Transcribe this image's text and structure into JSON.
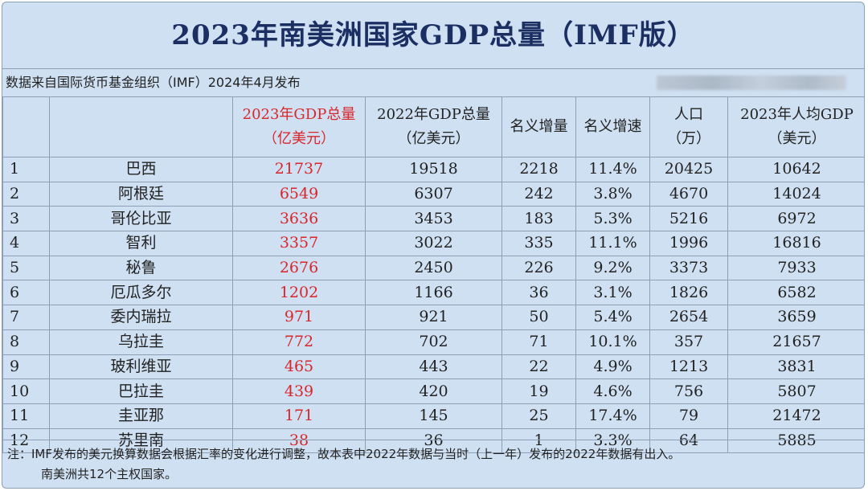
{
  "title": "2023年南美洲国家GDP总量（IMF版）",
  "source": "数据来自国际货币基金组织（IMF）2024年4月发布",
  "headers": [
    {
      "line1": "",
      "line2": ""
    },
    {
      "line1": "",
      "line2": ""
    },
    {
      "line1": "2023年GDP总量",
      "line2": "（亿美元）"
    },
    {
      "line1": "2022年GDP总量",
      "line2": "（亿美元）"
    },
    {
      "line1": "名义增量",
      "line2": ""
    },
    {
      "line1": "名义增速",
      "line2": ""
    },
    {
      "line1": "人口",
      "line2": "（万）"
    },
    {
      "line1": "2023年人均GDP",
      "line2": "（美元）"
    }
  ],
  "rows": [
    {
      "rank": "1",
      "country": "巴西",
      "gdp2023": "21737",
      "gdp2022": "19518",
      "increase": "2218",
      "growth": "11.4%",
      "population": "20425",
      "per_capita": "10642"
    },
    {
      "rank": "2",
      "country": "阿根廷",
      "gdp2023": "6549",
      "gdp2022": "6307",
      "increase": "242",
      "growth": "3.8%",
      "population": "4670",
      "per_capita": "14024"
    },
    {
      "rank": "3",
      "country": "哥伦比亚",
      "gdp2023": "3636",
      "gdp2022": "3453",
      "increase": "183",
      "growth": "5.3%",
      "population": "5216",
      "per_capita": "6972"
    },
    {
      "rank": "4",
      "country": "智利",
      "gdp2023": "3357",
      "gdp2022": "3022",
      "increase": "335",
      "growth": "11.1%",
      "population": "1996",
      "per_capita": "16816"
    },
    {
      "rank": "5",
      "country": "秘鲁",
      "gdp2023": "2676",
      "gdp2022": "2450",
      "increase": "226",
      "growth": "9.2%",
      "population": "3373",
      "per_capita": "7933"
    },
    {
      "rank": "6",
      "country": "厄瓜多尔",
      "gdp2023": "1202",
      "gdp2022": "1166",
      "increase": "36",
      "growth": "3.1%",
      "population": "1826",
      "per_capita": "6582"
    },
    {
      "rank": "7",
      "country": "委内瑞拉",
      "gdp2023": "971",
      "gdp2022": "921",
      "increase": "50",
      "growth": "5.4%",
      "population": "2654",
      "per_capita": "3659"
    },
    {
      "rank": "8",
      "country": "乌拉圭",
      "gdp2023": "772",
      "gdp2022": "702",
      "increase": "71",
      "growth": "10.1%",
      "population": "357",
      "per_capita": "21657"
    },
    {
      "rank": "9",
      "country": "玻利维亚",
      "gdp2023": "465",
      "gdp2022": "443",
      "increase": "22",
      "growth": "4.9%",
      "population": "1213",
      "per_capita": "3831"
    },
    {
      "rank": "10",
      "country": "巴拉圭",
      "gdp2023": "439",
      "gdp2022": "420",
      "increase": "19",
      "growth": "4.6%",
      "population": "756",
      "per_capita": "5807"
    },
    {
      "rank": "11",
      "country": "圭亚那",
      "gdp2023": "171",
      "gdp2022": "145",
      "increase": "25",
      "growth": "17.4%",
      "population": "79",
      "per_capita": "21472"
    },
    {
      "rank": "12",
      "country": "苏里南",
      "gdp2023": "38",
      "gdp2022": "36",
      "increase": "1",
      "growth": "3.3%",
      "population": "64",
      "per_capita": "5885"
    }
  ],
  "note_line1": "注：IMF发布的美元换算数据会根据汇率的变化进行调整，故本表中2022年数据与当时（上一年）发布的2022年数据有出入。",
  "note_line2": "南美洲共12个主权国家。",
  "colors": {
    "highlight": "#d9262b",
    "title": "#1b2f63",
    "background": "#cfe0f2"
  }
}
